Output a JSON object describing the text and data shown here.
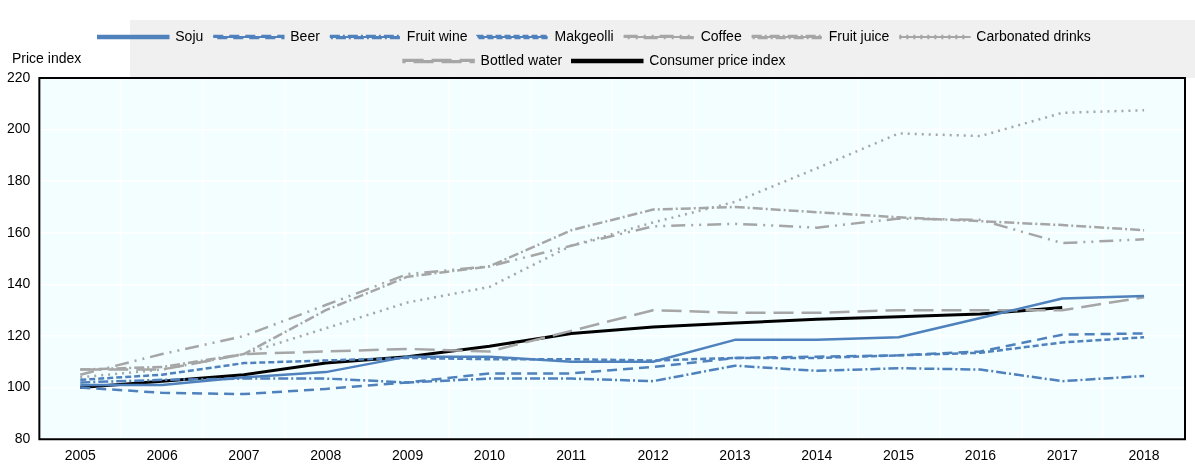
{
  "chart_data": {
    "type": "line",
    "ylabel": "Price index",
    "categories": [
      "2005",
      "2006",
      "2007",
      "2008",
      "2009",
      "2010",
      "2011",
      "2012",
      "2013",
      "2014",
      "2015",
      "2016",
      "2017",
      "2018"
    ],
    "ylim": [
      80,
      220
    ],
    "yticks": [
      80,
      100,
      120,
      140,
      160,
      180,
      200,
      220
    ],
    "grid": true,
    "legend": "top",
    "marker": "none",
    "series": [
      {
        "name": "Soju",
        "color": "#4f81bd",
        "line_style": "solid",
        "values": [
          101,
          101,
          104,
          106,
          112,
          112,
          110,
          110,
          118.5,
          118.5,
          119.5,
          127,
          134.5,
          135.5
        ]
      },
      {
        "name": "Beer",
        "color": "#4f81bd",
        "line_style": "dashed",
        "values": [
          100,
          98,
          97.5,
          99.5,
          102,
          105.5,
          105.5,
          108,
          111.5,
          112,
          112.5,
          114,
          120.5,
          121
        ]
      },
      {
        "name": "Fruit wine",
        "color": "#4f81bd",
        "line_style": "dashdot",
        "values": [
          102,
          103,
          103.5,
          103.5,
          102,
          103.5,
          103.5,
          102.5,
          108.5,
          106.5,
          107.5,
          107,
          102.5,
          104.5
        ]
      },
      {
        "name": "Makgeolli",
        "color": "#4f81bd",
        "line_style": "shortdash",
        "values": [
          103,
          105,
          109.5,
          110.5,
          111.5,
          111,
          111,
          110.5,
          111.5,
          111.5,
          112.5,
          113.5,
          117.5,
          119.5
        ]
      },
      {
        "name": "Coffee",
        "color": "#a6a6a6",
        "line_style": "dashdotdot",
        "values": [
          105,
          113,
          120,
          132,
          144,
          147,
          155,
          162.5,
          163.5,
          162,
          165.5,
          165,
          156,
          157.5
        ]
      },
      {
        "name": "Fruit juice",
        "color": "#a6a6a6",
        "line_style": "dashdot",
        "values": [
          107,
          108,
          113,
          130,
          143,
          147,
          161,
          169,
          170,
          168,
          166,
          164.5,
          163,
          161
        ]
      },
      {
        "name": "Carbonated drinks",
        "color": "#a6a6a6",
        "line_style": "dotted",
        "values": [
          104,
          107,
          113,
          123,
          133,
          139,
          155,
          164,
          172,
          185,
          198.5,
          197.5,
          206.5,
          207.5
        ]
      },
      {
        "name": "Bottled water",
        "color": "#a6a6a6",
        "line_style": "longdash",
        "values": [
          107,
          107,
          113,
          114,
          115,
          114,
          122,
          130,
          129,
          129,
          130,
          130,
          130,
          135
        ]
      },
      {
        "name": "Consumer price index",
        "color": "#000000",
        "line_style": "solid",
        "values": [
          100,
          102.5,
          105,
          109.5,
          112,
          116,
          121,
          123.5,
          125,
          126.5,
          127.5,
          128.5,
          131,
          null
        ]
      }
    ]
  }
}
